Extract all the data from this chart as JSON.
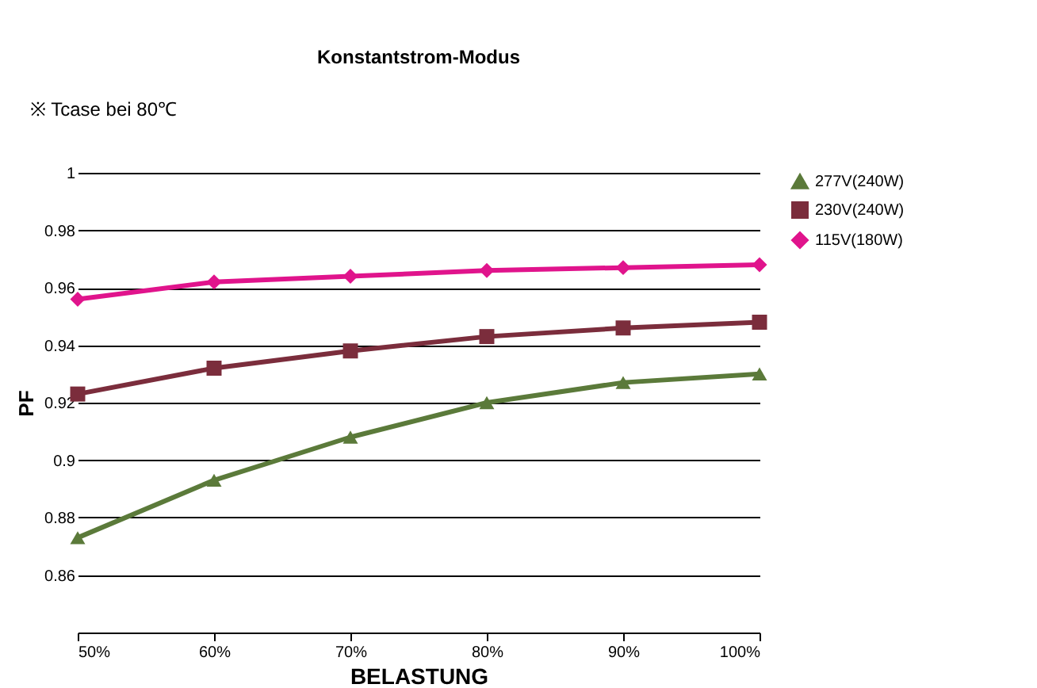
{
  "chart_data": {
    "type": "line",
    "title": "Konstantstrom-Modus",
    "xlabel": "BELASTUNG",
    "ylabel": "PF",
    "annotations": [
      "※ Tcase bei 80℃"
    ],
    "categories": [
      "50%",
      "60%",
      "70%",
      "80%",
      "90%",
      "100%"
    ],
    "series": [
      {
        "name": "277V(240W)",
        "color": "#5b7a3a",
        "marker": "triangle",
        "values": [
          0.873,
          0.893,
          0.908,
          0.92,
          0.927,
          0.93
        ]
      },
      {
        "name": "230V(240W)",
        "color": "#7b2d3c",
        "marker": "square",
        "values": [
          0.923,
          0.932,
          0.938,
          0.943,
          0.946,
          0.948
        ]
      },
      {
        "name": "115V(180W)",
        "color": "#e0148c",
        "marker": "diamond",
        "values": [
          0.956,
          0.962,
          0.964,
          0.966,
          0.967,
          0.968
        ]
      }
    ],
    "ylim": [
      0.84,
      1
    ],
    "yticks": [
      0.86,
      0.88,
      0.9,
      0.92,
      0.94,
      0.96,
      0.98,
      1
    ],
    "grid": "y",
    "legend": "right",
    "line_style": "solid"
  }
}
